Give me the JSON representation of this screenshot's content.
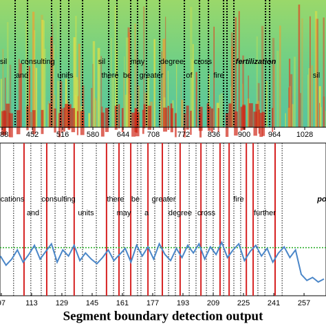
{
  "chart_data": [
    {
      "type": "spectrogram",
      "xlim": [
        383.6,
        1073
      ],
      "xticks": [
        388,
        452,
        516,
        580,
        644,
        708,
        772,
        836,
        900,
        964,
        1028
      ],
      "words": [
        {
          "text": "sil",
          "color": "#000000"
        },
        {
          "text": "and",
          "color": "#000000"
        },
        {
          "text": "consulting",
          "color": "#000000"
        },
        {
          "text": "units",
          "color": "#000000"
        },
        {
          "text": "sil",
          "color": "#000000"
        },
        {
          "text": "there",
          "color": "#000000"
        },
        {
          "text": "may",
          "color": "#000000"
        },
        {
          "text": "be",
          "color": "#000000"
        },
        {
          "text": "greater",
          "color": "#000000"
        },
        {
          "text": "degree",
          "color": "#000000"
        },
        {
          "text": "of",
          "color": "#000000"
        },
        {
          "text": "cross",
          "color": "#000000"
        },
        {
          "text": "fire",
          "color": "#000000"
        },
        {
          "text": "fertilization",
          "color": "#000000"
        },
        {
          "text": "sil",
          "color": "#000000"
        }
      ],
      "boundaries": [
        415.6,
        441.8,
        492.7,
        511.6,
        529.1,
        558.2,
        613.5,
        630.9,
        660,
        674.5,
        693.5,
        721.1,
        773.5,
        805.5,
        824.4,
        856.4,
        863.6,
        878.2,
        945.1,
        953.8
      ]
    },
    {
      "type": "line",
      "xlim": [
        96.3,
        268.6
      ],
      "ylim": [
        0,
        1
      ],
      "xticks": [
        97,
        113,
        129,
        145,
        161,
        177,
        193,
        209,
        225,
        241,
        257
      ],
      "series": [
        {
          "color": "#4a86c8",
          "x": [
            96.5,
            99.5,
            102.5,
            105.5,
            108.5,
            111.5,
            114.5,
            117.5,
            120.5,
            123.5,
            126.5,
            129.5,
            132.5,
            135.5,
            138.5,
            141.5,
            144.5,
            147.5,
            150.5,
            153.5,
            156.5,
            159.5,
            162.5,
            165.5,
            168.5,
            171.5,
            174.5,
            177.5,
            180.5,
            183.5,
            186.5,
            189.5,
            192.5,
            195.5,
            198.5,
            201.5,
            204.5,
            207.5,
            210.5,
            213.5,
            216.5,
            219.5,
            222.5,
            225.5,
            228.5,
            231.5,
            234.5,
            237.5,
            240.5,
            243.5,
            246.5,
            249.5,
            252.5,
            255.5,
            258.5,
            261.5,
            264.5,
            267.5
          ],
          "values": [
            0.26,
            0.2,
            0.24,
            0.3,
            0.22,
            0.27,
            0.33,
            0.24,
            0.29,
            0.34,
            0.22,
            0.3,
            0.26,
            0.33,
            0.23,
            0.28,
            0.24,
            0.21,
            0.25,
            0.3,
            0.23,
            0.27,
            0.31,
            0.22,
            0.33,
            0.26,
            0.32,
            0.24,
            0.34,
            0.27,
            0.23,
            0.31,
            0.25,
            0.33,
            0.28,
            0.34,
            0.24,
            0.32,
            0.27,
            0.35,
            0.25,
            0.3,
            0.34,
            0.23,
            0.29,
            0.33,
            0.26,
            0.31,
            0.22,
            0.28,
            0.32,
            0.25,
            0.3,
            0.14,
            0.1,
            0.12,
            0.09,
            0.11
          ]
        }
      ],
      "threshold": 0.315,
      "threshold_color": "#22aa22",
      "boundary_color": "#d62020",
      "boundaries": [
        109,
        121,
        135.5,
        152.6,
        159.2,
        165.4,
        174.5,
        182.1,
        191.5,
        202.5,
        212.6,
        217.4,
        226.5,
        230.1,
        241.7
      ],
      "reference_boundaries": [
        103.5,
        112.6,
        118.1,
        125.4,
        130.8,
        139.9,
        147.2,
        156.3,
        161.7,
        169,
        170.8,
        178.1,
        185.4,
        189,
        196.3,
        199.9,
        205.4,
        209,
        214.5,
        219.9,
        223.5,
        232.6,
        236.3,
        245.4
      ],
      "words": [
        {
          "text": "cations",
          "color": "#000000"
        },
        {
          "text": "and",
          "color": "#000000"
        },
        {
          "text": "consulting",
          "color": "#000000"
        },
        {
          "text": "units",
          "color": "#000000"
        },
        {
          "text": "there",
          "color": "#000000"
        },
        {
          "text": "be",
          "color": "#000000"
        },
        {
          "text": "may",
          "color": "#000000"
        },
        {
          "text": "a",
          "color": "#000000"
        },
        {
          "text": "greater",
          "color": "#000000"
        },
        {
          "text": "degree",
          "color": "#000000"
        },
        {
          "text": "cross",
          "color": "#000000"
        },
        {
          "text": "fire",
          "color": "#000000"
        },
        {
          "text": "further",
          "color": "#d62020"
        },
        {
          "text": "po",
          "color": "#d62020"
        }
      ]
    }
  ],
  "caption": "Segment boundary detection output"
}
